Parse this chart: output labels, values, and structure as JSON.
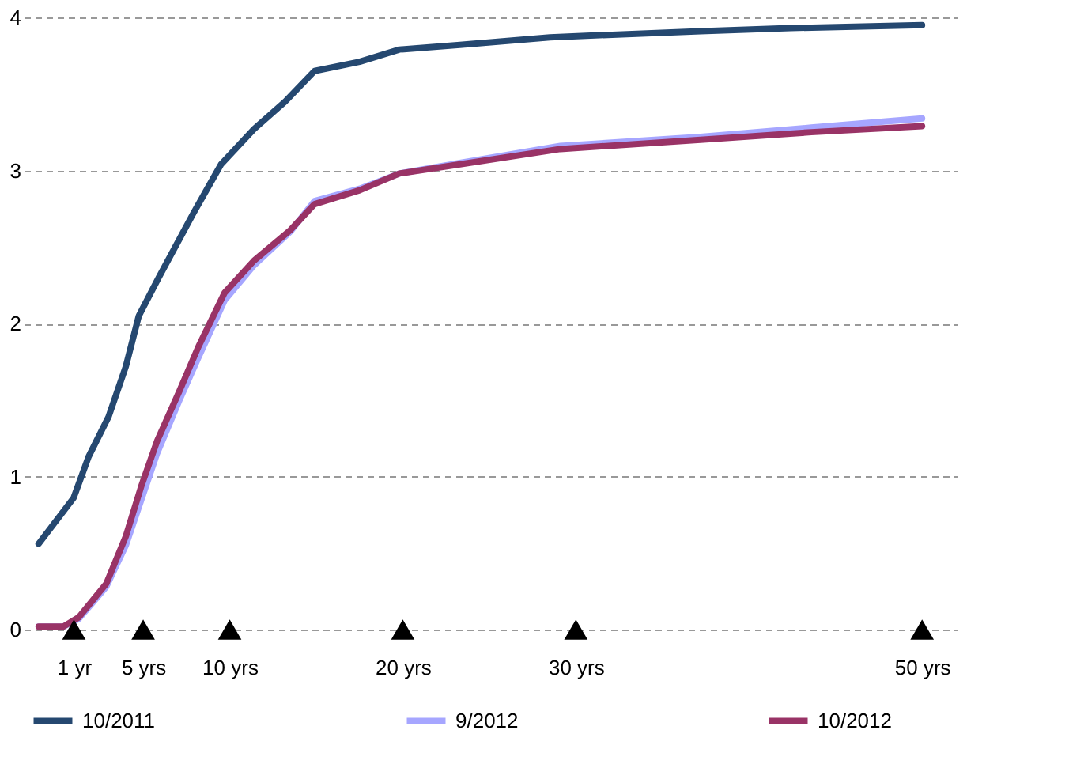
{
  "chart_data": {
    "type": "line",
    "xlim": [
      -1.9,
      52
    ],
    "xticks": [
      {
        "value": 1,
        "label": "1 yr"
      },
      {
        "value": 5,
        "label": "5 yrs"
      },
      {
        "value": 10,
        "label": "10 yrs"
      },
      {
        "value": 20,
        "label": "20 yrs"
      },
      {
        "value": 30,
        "label": "30 yrs"
      },
      {
        "value": 50,
        "label": "50 yrs"
      }
    ],
    "ylim": [
      0,
      4
    ],
    "yticks": [
      0,
      1,
      2,
      3,
      4
    ],
    "grid": "y",
    "legend": "bottom",
    "marker": "none",
    "line_style": "solid",
    "series": [
      {
        "name": "10/2011",
        "color": "#254870",
        "x": [
          -1.04,
          0.98,
          1.85,
          3.0,
          4.0,
          4.75,
          5.9,
          7.9,
          9.5,
          11.4,
          13.2,
          14.9,
          17.5,
          19.8,
          23.3,
          28.5,
          37.2,
          42.4,
          50
        ],
        "values": [
          0.56,
          0.86,
          1.13,
          1.39,
          1.72,
          2.05,
          2.3,
          2.72,
          3.04,
          3.27,
          3.45,
          3.65,
          3.71,
          3.79,
          3.82,
          3.87,
          3.91,
          3.93,
          3.95
        ]
      },
      {
        "name": "9/2012",
        "color": "#a6a6ff",
        "x": [
          -1.04,
          0.4,
          1.28,
          2.87,
          4.0,
          4.9,
          5.8,
          7.1,
          8.2,
          9.7,
          11.4,
          13.5,
          14.9,
          17.5,
          19.8,
          23.3,
          29.1,
          37.2,
          43.6,
          50
        ],
        "values": [
          0.02,
          0.02,
          0.07,
          0.28,
          0.55,
          0.85,
          1.15,
          1.5,
          1.78,
          2.15,
          2.38,
          2.6,
          2.8,
          2.88,
          2.98,
          3.05,
          3.16,
          3.22,
          3.28,
          3.34
        ]
      },
      {
        "name": "10/2012",
        "color": "#993366",
        "x": [
          -1.04,
          0.4,
          1.28,
          2.87,
          4.0,
          4.9,
          5.8,
          7.1,
          8.2,
          9.7,
          11.4,
          13.5,
          14.9,
          17.5,
          19.8,
          23.3,
          29.1,
          37.2,
          43.6,
          50
        ],
        "values": [
          0.02,
          0.02,
          0.08,
          0.3,
          0.61,
          0.94,
          1.23,
          1.56,
          1.85,
          2.2,
          2.41,
          2.61,
          2.78,
          2.87,
          2.98,
          3.04,
          3.14,
          3.2,
          3.25,
          3.29
        ]
      },
      {
        "type": "scatter",
        "marker": "triangle",
        "color": "#000000",
        "x": [
          1,
          5,
          10,
          20,
          30,
          50
        ],
        "values": [
          0,
          0,
          0,
          0,
          0,
          0
        ]
      }
    ]
  }
}
